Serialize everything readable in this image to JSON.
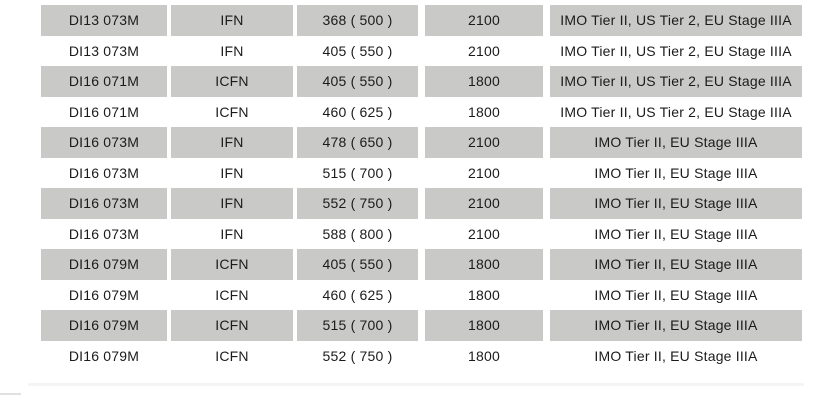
{
  "colors": {
    "page_bg": "#ffffff",
    "row_stripe": "#c9c9c7",
    "text": "#1b1b1b",
    "divider": "#f4f4f4",
    "fragment": "#e0e0e0"
  },
  "table": {
    "rows": [
      {
        "model": "DI13 073M",
        "type": "IFN",
        "power": "368 ( 500 )",
        "rpm": "2100",
        "emissions": "IMO Tier II, US Tier 2, EU Stage IIIA"
      },
      {
        "model": "DI13 073M",
        "type": "IFN",
        "power": "405 ( 550 )",
        "rpm": "2100",
        "emissions": "IMO Tier II, US Tier 2, EU Stage IIIA"
      },
      {
        "model": "DI16 071M",
        "type": "ICFN",
        "power": "405 ( 550 )",
        "rpm": "1800",
        "emissions": "IMO Tier II, US Tier 2, EU Stage IIIA"
      },
      {
        "model": "DI16 071M",
        "type": "ICFN",
        "power": "460 ( 625 )",
        "rpm": "1800",
        "emissions": "IMO Tier II, US Tier 2, EU Stage IIIA"
      },
      {
        "model": "DI16 073M",
        "type": "IFN",
        "power": "478 ( 650 )",
        "rpm": "2100",
        "emissions": "IMO Tier II, EU Stage IIIA"
      },
      {
        "model": "DI16 073M",
        "type": "IFN",
        "power": "515 ( 700 )",
        "rpm": "2100",
        "emissions": "IMO Tier II, EU Stage IIIA"
      },
      {
        "model": "DI16 073M",
        "type": "IFN",
        "power": "552 ( 750 )",
        "rpm": "2100",
        "emissions": "IMO Tier II, EU Stage IIIA"
      },
      {
        "model": "DI16 073M",
        "type": "IFN",
        "power": "588 ( 800 )",
        "rpm": "2100",
        "emissions": "IMO Tier II, EU Stage IIIA"
      },
      {
        "model": "DI16 079M",
        "type": "ICFN",
        "power": "405 ( 550 )",
        "rpm": "1800",
        "emissions": "IMO Tier II, EU Stage IIIA"
      },
      {
        "model": "DI16 079M",
        "type": "ICFN",
        "power": "460 ( 625 )",
        "rpm": "1800",
        "emissions": "IMO Tier II, EU Stage IIIA"
      },
      {
        "model": "DI16 079M",
        "type": "ICFN",
        "power": "515 ( 700 )",
        "rpm": "1800",
        "emissions": "IMO Tier II, EU Stage IIIA"
      },
      {
        "model": "DI16 079M",
        "type": "ICFN",
        "power": "552 ( 750 )",
        "rpm": "1800",
        "emissions": "IMO Tier II, EU Stage IIIA"
      }
    ]
  }
}
